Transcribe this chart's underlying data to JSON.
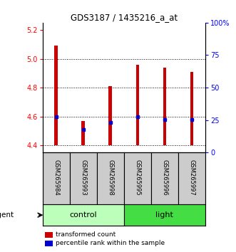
{
  "title": "GDS3187 / 1435216_a_at",
  "samples": [
    "GSM265984",
    "GSM265993",
    "GSM265998",
    "GSM265995",
    "GSM265996",
    "GSM265997"
  ],
  "bar_bottoms": [
    4.4,
    4.4,
    4.4,
    4.4,
    4.4,
    4.4
  ],
  "bar_tops": [
    5.09,
    4.57,
    4.81,
    4.96,
    4.94,
    4.91
  ],
  "percentile_values": [
    4.6,
    4.51,
    4.56,
    4.6,
    4.58,
    4.58
  ],
  "ylim_left": [
    4.35,
    5.25
  ],
  "ylim_right": [
    0,
    100
  ],
  "yticks_left": [
    4.4,
    4.6,
    4.8,
    5.0,
    5.2
  ],
  "yticks_right": [
    0,
    25,
    50,
    75,
    100
  ],
  "ytick_labels_right": [
    "0",
    "25",
    "50",
    "75",
    "100%"
  ],
  "bar_color": "#cc0000",
  "percentile_color": "#0000cc",
  "groups": [
    {
      "label": "control",
      "start": 0,
      "end": 3,
      "color": "#bbffbb"
    },
    {
      "label": "light",
      "start": 3,
      "end": 6,
      "color": "#44dd44"
    }
  ],
  "legend_items": [
    {
      "color": "#cc0000",
      "label": "transformed count"
    },
    {
      "color": "#0000cc",
      "label": "percentile rank within the sample"
    }
  ],
  "bar_width": 0.12,
  "sample_box_color": "#cccccc",
  "background_color": "#ffffff"
}
